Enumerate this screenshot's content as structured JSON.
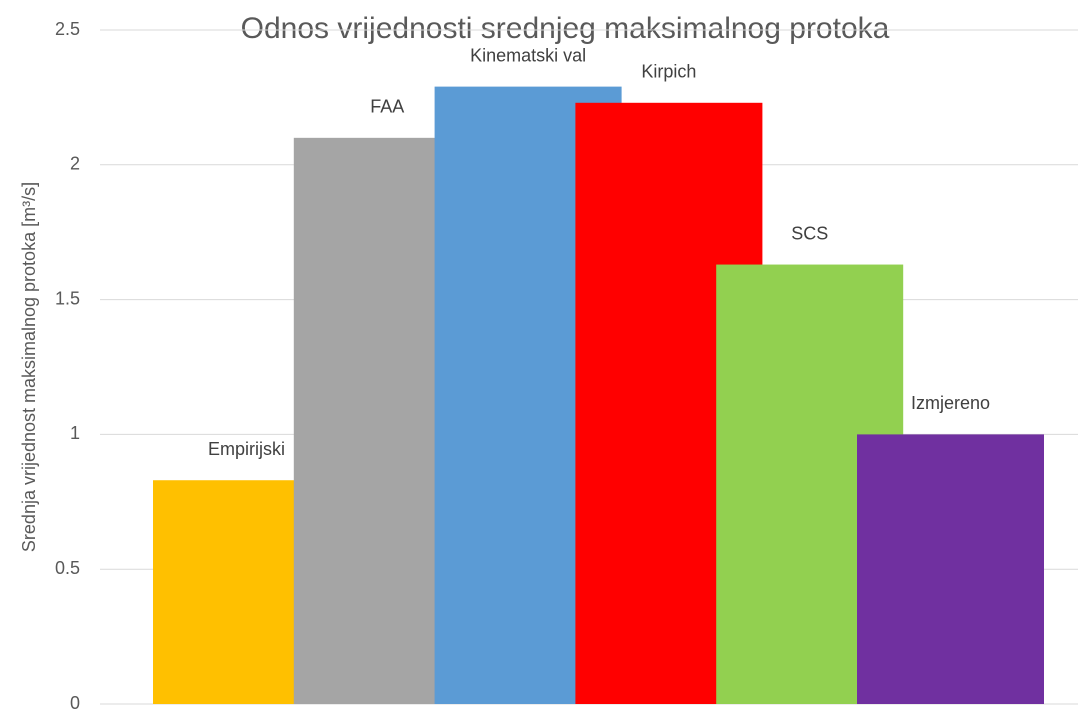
{
  "chart_data": {
    "type": "bar",
    "title": "Odnos vrijednosti srednjeg maksimalnog protoka",
    "y_label": "Srednja vrijednost maksimalnog protoka [m³/s]",
    "categories": [
      null
    ],
    "series": [
      {
        "name": "Empirijski",
        "color": "#ffc000",
        "values": [
          0.83
        ]
      },
      {
        "name": "FAA",
        "color": "#a5a5a5",
        "values": [
          2.1
        ]
      },
      {
        "name": "Kinematski val",
        "color": "#5b9bd5",
        "values": [
          2.29
        ]
      },
      {
        "name": "Kirpich",
        "color": "#ff0000",
        "values": [
          2.23
        ]
      },
      {
        "name": "SCS",
        "color": "#92d050",
        "values": [
          1.63
        ]
      },
      {
        "name": "Izmjereno",
        "color": "#7030a0",
        "values": [
          1.0
        ]
      }
    ],
    "ylim": [
      0,
      2.5
    ],
    "yticks": [
      0,
      0.5,
      1,
      1.5,
      2,
      2.5
    ],
    "grid": true
  }
}
